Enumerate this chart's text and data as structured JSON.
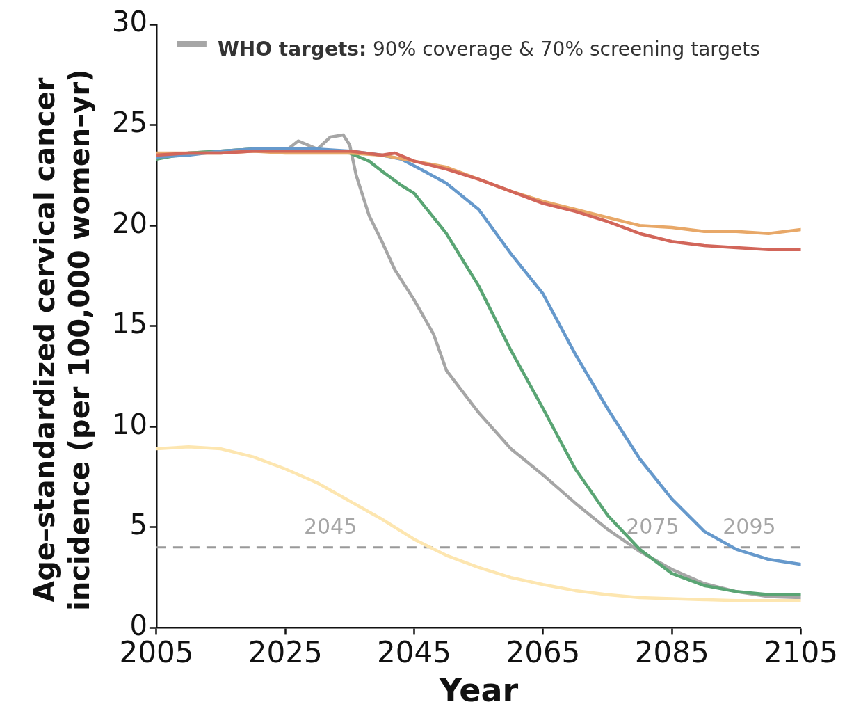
{
  "chart_data": {
    "type": "line",
    "xlabel": "Year",
    "ylabel": "Age–standardized cervical cancer incidence (per 100,000 women–yr)",
    "xlim": [
      2005,
      2105
    ],
    "xticks": [
      2005,
      2025,
      2045,
      2065,
      2085,
      2105
    ],
    "ylim": [
      0,
      30
    ],
    "yticks": [
      0,
      5,
      10,
      15,
      20,
      25,
      30
    ],
    "grid": false,
    "legend": "top",
    "marker": "none",
    "line_style": "solid",
    "ref_lines": [
      {
        "axis": "y",
        "value": 4,
        "color": "#999999",
        "line_style": "dashed"
      }
    ],
    "annotations": [
      "2045",
      "2075",
      "2095"
    ],
    "series": [
      {
        "color": "#fde6b0",
        "x": [
          2005,
          2010,
          2015,
          2020,
          2025,
          2030,
          2035,
          2040,
          2045,
          2050,
          2055,
          2060,
          2065,
          2070,
          2075,
          2080,
          2085,
          2090,
          2095,
          2100,
          2105
        ],
        "values": [
          8.9,
          9.0,
          8.9,
          8.5,
          7.9,
          7.2,
          6.3,
          5.4,
          4.4,
          3.6,
          3.0,
          2.5,
          2.15,
          1.85,
          1.65,
          1.5,
          1.45,
          1.4,
          1.35,
          1.35,
          1.35
        ]
      },
      {
        "color": "#d2665a",
        "x": [
          2005,
          2010,
          2015,
          2020,
          2025,
          2030,
          2035,
          2040,
          2042,
          2045,
          2050,
          2055,
          2060,
          2065,
          2070,
          2075,
          2080,
          2085,
          2090,
          2095,
          2100,
          2105
        ],
        "values": [
          23.5,
          23.6,
          23.6,
          23.7,
          23.7,
          23.7,
          23.7,
          23.5,
          23.6,
          23.2,
          22.8,
          22.3,
          21.7,
          21.1,
          20.7,
          20.2,
          19.6,
          19.2,
          19.0,
          18.9,
          18.8,
          18.8
        ]
      },
      {
        "color": "#e8a868",
        "x": [
          2005,
          2010,
          2015,
          2020,
          2025,
          2030,
          2035,
          2040,
          2045,
          2050,
          2055,
          2060,
          2065,
          2070,
          2075,
          2080,
          2085,
          2090,
          2095,
          2100,
          2105
        ],
        "values": [
          23.6,
          23.6,
          23.6,
          23.7,
          23.6,
          23.6,
          23.6,
          23.5,
          23.2,
          22.9,
          22.3,
          21.7,
          21.2,
          20.8,
          20.4,
          20.0,
          19.9,
          19.7,
          19.7,
          19.6,
          19.8
        ]
      },
      {
        "color": "#6699cc",
        "x": [
          2005,
          2010,
          2015,
          2020,
          2025,
          2030,
          2035,
          2040,
          2043,
          2046,
          2050,
          2055,
          2060,
          2065,
          2070,
          2075,
          2080,
          2085,
          2090,
          2095,
          2100,
          2105
        ],
        "values": [
          23.4,
          23.5,
          23.7,
          23.8,
          23.8,
          23.8,
          23.7,
          23.5,
          23.3,
          22.8,
          22.1,
          20.8,
          18.6,
          16.6,
          13.6,
          10.9,
          8.4,
          6.4,
          4.8,
          3.9,
          3.4,
          3.15
        ]
      },
      {
        "color": "#5aa574",
        "x": [
          2005,
          2010,
          2015,
          2020,
          2025,
          2030,
          2035,
          2038,
          2040,
          2043,
          2045,
          2050,
          2055,
          2060,
          2065,
          2070,
          2075,
          2080,
          2085,
          2090,
          2095,
          2100,
          2105
        ],
        "values": [
          23.3,
          23.6,
          23.7,
          23.8,
          23.8,
          23.8,
          23.6,
          23.2,
          22.7,
          22.0,
          21.6,
          19.6,
          17.0,
          13.8,
          10.9,
          7.9,
          5.6,
          3.9,
          2.7,
          2.1,
          1.8,
          1.65,
          1.65
        ]
      },
      {
        "name": "WHO targets: 90% coverage & 70% screening targets",
        "color": "#a6a6a6",
        "x": [
          2005,
          2010,
          2015,
          2020,
          2025,
          2027,
          2030,
          2032,
          2034,
          2035,
          2036,
          2038,
          2040,
          2042,
          2045,
          2048,
          2050,
          2055,
          2060,
          2065,
          2070,
          2075,
          2080,
          2085,
          2090,
          2095,
          2100,
          2105
        ],
        "values": [
          23.4,
          23.6,
          23.7,
          23.8,
          23.7,
          24.2,
          23.8,
          24.4,
          24.5,
          24.0,
          22.5,
          20.5,
          19.2,
          17.8,
          16.3,
          14.6,
          12.8,
          10.7,
          8.9,
          7.6,
          6.2,
          4.9,
          3.8,
          2.9,
          2.2,
          1.8,
          1.55,
          1.5
        ]
      }
    ]
  }
}
